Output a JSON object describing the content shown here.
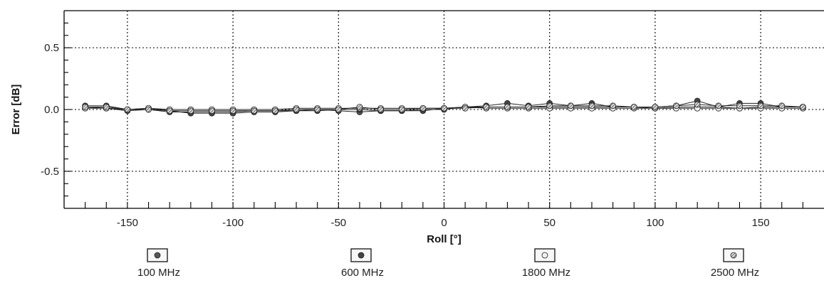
{
  "chart_data": {
    "type": "line",
    "xlabel": "Roll [°]",
    "ylabel": "Error [dB]",
    "xlim": [
      -180,
      180
    ],
    "ylim": [
      -0.8,
      0.8
    ],
    "x_ticks": [
      -150,
      -100,
      -50,
      0,
      50,
      100,
      150
    ],
    "y_ticks": [
      0.5,
      0.0,
      -0.5
    ],
    "y_tick_labels": [
      "0.5",
      "0.0",
      "-0.5"
    ],
    "grid": true,
    "legend_position": "bottom",
    "x": [
      -170,
      -160,
      -150,
      -140,
      -130,
      -120,
      -110,
      -100,
      -90,
      -80,
      -70,
      -60,
      -50,
      -40,
      -30,
      -20,
      -10,
      0,
      10,
      20,
      30,
      40,
      50,
      60,
      70,
      80,
      90,
      100,
      110,
      120,
      130,
      140,
      150,
      160,
      170
    ],
    "series": [
      {
        "name": "100 MHz",
        "values": [
          0.02,
          0.01,
          -0.01,
          0.0,
          -0.02,
          -0.02,
          -0.02,
          -0.02,
          -0.01,
          -0.01,
          -0.01,
          0.0,
          -0.01,
          -0.02,
          -0.01,
          -0.01,
          0.0,
          0.0,
          0.02,
          0.02,
          0.02,
          0.02,
          0.02,
          0.02,
          0.02,
          0.02,
          0.02,
          0.01,
          0.02,
          0.02,
          0.02,
          0.01,
          0.02,
          0.02,
          0.02
        ]
      },
      {
        "name": "600 MHz",
        "values": [
          0.03,
          0.03,
          0.0,
          0.01,
          -0.01,
          -0.03,
          -0.03,
          -0.03,
          -0.02,
          -0.02,
          -0.01,
          -0.01,
          0.0,
          0.0,
          -0.01,
          -0.01,
          -0.01,
          0.01,
          0.02,
          0.03,
          0.05,
          0.03,
          0.05,
          0.03,
          0.05,
          0.02,
          0.02,
          0.02,
          0.03,
          0.07,
          0.02,
          0.05,
          0.05,
          0.02,
          0.02
        ]
      },
      {
        "name": "1800 MHz",
        "values": [
          0.01,
          0.01,
          0.0,
          0.01,
          0.0,
          0.0,
          0.0,
          0.0,
          0.0,
          0.0,
          0.01,
          0.01,
          0.01,
          0.01,
          0.01,
          0.01,
          0.01,
          0.01,
          0.02,
          0.01,
          0.01,
          0.01,
          0.01,
          0.01,
          0.01,
          0.01,
          0.01,
          0.01,
          0.01,
          0.01,
          0.01,
          0.01,
          0.01,
          0.01,
          0.01
        ]
      },
      {
        "name": "2500 MHz",
        "values": [
          0.02,
          0.02,
          0.0,
          0.0,
          -0.01,
          -0.01,
          -0.01,
          -0.01,
          -0.01,
          -0.01,
          0.0,
          0.0,
          0.0,
          0.02,
          0.0,
          0.0,
          0.01,
          0.01,
          0.01,
          0.02,
          0.02,
          0.02,
          0.03,
          0.03,
          0.03,
          0.03,
          0.02,
          0.02,
          0.03,
          0.04,
          0.03,
          0.03,
          0.03,
          0.03,
          0.02
        ]
      }
    ]
  },
  "colors": {
    "axis": "#000000",
    "grid": "#000000",
    "series_line": "#222222",
    "marker_fills": [
      "#555555",
      "#444444",
      "#f0f0f0",
      "#777777"
    ]
  },
  "legend": {
    "items": [
      {
        "label": "100 MHz",
        "marker": "filled-circle"
      },
      {
        "label": "600 MHz",
        "marker": "filled-circle"
      },
      {
        "label": "1800 MHz",
        "marker": "open-circle"
      },
      {
        "label": "2500 MHz",
        "marker": "hatched-circle"
      }
    ]
  }
}
